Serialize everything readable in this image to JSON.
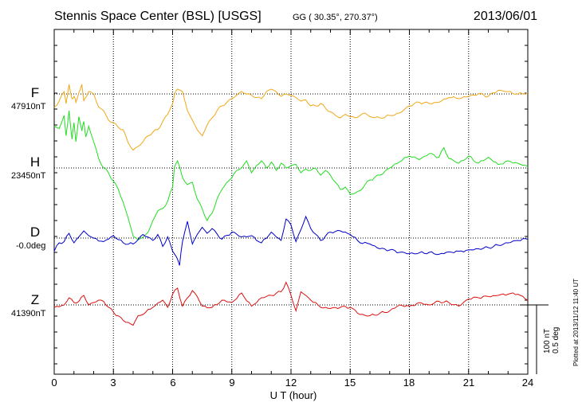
{
  "header": {
    "station": "Stennis Space Center (BSL)  [USGS]",
    "coords": "GG ( 30.35°, 270.37°)",
    "date": "2013/06/01"
  },
  "chart_data": {
    "type": "line",
    "title": "Stennis Space Center (BSL)  [USGS]",
    "xlabel": "U T (hour)",
    "ylabel": "",
    "xlim": [
      0,
      24
    ],
    "x_ticks": [
      "0",
      "3",
      "6",
      "9",
      "12",
      "15",
      "18",
      "21",
      "24"
    ],
    "grid": true,
    "scale_label": "100 nT",
    "scale_label_deg": "0.5 deg",
    "scale_bar_nT": 100,
    "series": [
      {
        "name": "F",
        "baseline_label": "47910nT",
        "color": "#f0a818",
        "x": [
          0,
          0.25,
          0.5,
          0.6,
          0.75,
          0.9,
          1.0,
          1.1,
          1.25,
          1.4,
          1.5,
          1.6,
          1.75,
          2.0,
          2.25,
          2.5,
          2.75,
          3.0,
          3.25,
          3.5,
          3.75,
          4.0,
          4.25,
          4.5,
          4.75,
          5.0,
          5.25,
          5.5,
          5.75,
          6.0,
          6.1,
          6.25,
          6.5,
          6.75,
          7.0,
          7.25,
          7.5,
          7.75,
          8.0,
          8.25,
          8.5,
          8.75,
          9.0,
          9.25,
          9.5,
          9.75,
          10.0,
          10.25,
          10.5,
          10.75,
          11.0,
          11.25,
          11.5,
          11.75,
          12.0,
          12.25,
          12.5,
          12.75,
          13.0,
          13.25,
          13.5,
          13.75,
          14.0,
          14.25,
          14.5,
          14.75,
          15.0,
          15.25,
          15.5,
          15.75,
          16.0,
          16.5,
          17.0,
          17.5,
          18.0,
          18.5,
          19.0,
          19.5,
          20.0,
          20.5,
          21.0,
          21.5,
          22.0,
          22.5,
          23.0,
          23.5,
          24.0
        ],
        "values": [
          -55,
          -30,
          10,
          -40,
          40,
          -20,
          -10,
          -35,
          5,
          40,
          -30,
          -15,
          10,
          0,
          -55,
          -70,
          -110,
          -120,
          -140,
          -150,
          -205,
          -235,
          -220,
          -200,
          -175,
          -160,
          -150,
          -115,
          -85,
          -40,
          0,
          20,
          10,
          -70,
          -110,
          -150,
          -175,
          -130,
          -100,
          -70,
          -50,
          -35,
          -20,
          -5,
          10,
          0,
          -5,
          -15,
          -20,
          10,
          20,
          10,
          -10,
          0,
          -5,
          -15,
          -30,
          -25,
          -50,
          -50,
          -40,
          -60,
          -75,
          -90,
          -100,
          -85,
          -95,
          -100,
          -90,
          -80,
          -95,
          -100,
          -90,
          -80,
          -50,
          -35,
          -40,
          -35,
          -15,
          -20,
          -10,
          0,
          -10,
          15,
          10,
          0,
          5
        ]
      },
      {
        "name": "H",
        "baseline_label": "23450nT",
        "color": "#22dd22",
        "x": [
          0,
          0.25,
          0.5,
          0.6,
          0.75,
          0.9,
          1.0,
          1.1,
          1.25,
          1.4,
          1.5,
          1.6,
          1.75,
          2.0,
          2.25,
          2.5,
          2.75,
          3.0,
          3.25,
          3.5,
          3.75,
          4.0,
          4.25,
          4.5,
          4.75,
          5.0,
          5.25,
          5.5,
          5.75,
          6.0,
          6.1,
          6.25,
          6.5,
          6.75,
          7.0,
          7.25,
          7.5,
          7.75,
          8.0,
          8.25,
          8.5,
          8.75,
          9.0,
          9.25,
          9.5,
          9.75,
          10.0,
          10.25,
          10.5,
          10.75,
          11.0,
          11.25,
          11.5,
          11.75,
          12.0,
          12.25,
          12.5,
          12.75,
          13.0,
          13.25,
          13.5,
          13.75,
          14.0,
          14.25,
          14.5,
          14.75,
          15.0,
          15.25,
          15.5,
          15.75,
          16.0,
          16.5,
          17.0,
          17.5,
          18.0,
          18.5,
          19.0,
          19.5,
          19.75,
          20.0,
          20.5,
          21.0,
          21.5,
          22.0,
          22.5,
          23.0,
          23.5,
          24.0
        ],
        "values": [
          175,
          165,
          220,
          135,
          240,
          120,
          190,
          110,
          215,
          155,
          195,
          130,
          175,
          110,
          40,
          0,
          -20,
          -55,
          -90,
          -145,
          -210,
          -285,
          -300,
          -290,
          -270,
          -220,
          -180,
          -170,
          -140,
          -80,
          5,
          30,
          -40,
          -70,
          -60,
          -130,
          -170,
          -220,
          -190,
          -130,
          -90,
          -60,
          -40,
          -10,
          0,
          30,
          -20,
          10,
          30,
          0,
          25,
          -10,
          20,
          0,
          10,
          15,
          -20,
          -5,
          -10,
          0,
          -30,
          -10,
          -30,
          -60,
          -90,
          -80,
          -110,
          -105,
          -95,
          -70,
          -50,
          -30,
          0,
          25,
          50,
          35,
          60,
          45,
          85,
          40,
          20,
          50,
          20,
          45,
          15,
          30,
          20,
          5
        ]
      },
      {
        "name": "D",
        "baseline_label": "-0.0deg",
        "color": "#0000cc",
        "x": [
          0,
          0.25,
          0.5,
          0.75,
          1.0,
          1.25,
          1.5,
          1.75,
          2.0,
          2.5,
          3.0,
          3.5,
          4.0,
          4.5,
          5.0,
          5.25,
          5.5,
          5.75,
          6.0,
          6.2,
          6.35,
          6.5,
          6.75,
          7.0,
          7.25,
          7.5,
          7.75,
          8.0,
          8.5,
          9.0,
          9.5,
          10.0,
          10.5,
          11.0,
          11.25,
          11.5,
          11.75,
          12.0,
          12.25,
          12.5,
          12.75,
          13.0,
          13.5,
          14.0,
          14.5,
          15.0,
          15.5,
          16.0,
          16.5,
          17.0,
          17.5,
          18.0,
          18.5,
          19.0,
          19.5,
          20.0,
          20.5,
          21.0,
          21.5,
          22.0,
          22.5,
          23.0,
          23.5,
          24.0
        ],
        "values": [
          -55,
          -20,
          -15,
          20,
          -20,
          5,
          30,
          10,
          0,
          -15,
          10,
          -20,
          -25,
          15,
          -10,
          15,
          -35,
          5,
          -55,
          -80,
          -115,
          -15,
          70,
          -25,
          15,
          45,
          20,
          40,
          -5,
          25,
          5,
          10,
          -20,
          25,
          5,
          -10,
          80,
          55,
          -15,
          35,
          90,
          40,
          -10,
          25,
          30,
          15,
          -20,
          -25,
          -45,
          -50,
          -60,
          -65,
          -62,
          -60,
          -68,
          -58,
          -55,
          -50,
          -45,
          -40,
          -30,
          -20,
          -10,
          -5
        ]
      },
      {
        "name": "Z",
        "baseline_label": "41390nT",
        "color": "#dd1111",
        "x": [
          0,
          0.5,
          0.75,
          1.0,
          1.25,
          1.5,
          1.75,
          2.0,
          2.25,
          2.5,
          2.75,
          3.0,
          3.5,
          4.0,
          4.25,
          4.5,
          5.0,
          5.5,
          5.75,
          6.0,
          6.25,
          6.5,
          7.0,
          7.25,
          7.5,
          8.0,
          8.5,
          9.0,
          9.5,
          10.0,
          10.5,
          11.0,
          11.5,
          11.75,
          12.0,
          12.25,
          12.5,
          12.75,
          13.0,
          13.5,
          14.0,
          14.5,
          15.0,
          15.5,
          16.0,
          16.5,
          17.0,
          17.5,
          18.0,
          18.5,
          19.0,
          19.5,
          20.0,
          20.5,
          21.0,
          21.5,
          22.0,
          22.5,
          23.0,
          23.5,
          24.0
        ],
        "values": [
          -10,
          0,
          30,
          10,
          15,
          40,
          0,
          10,
          20,
          15,
          -10,
          -30,
          -65,
          -85,
          -45,
          -40,
          -10,
          20,
          -10,
          45,
          70,
          -5,
          60,
          35,
          -5,
          -10,
          20,
          10,
          50,
          -5,
          30,
          40,
          55,
          95,
          40,
          -25,
          55,
          40,
          20,
          -10,
          -15,
          -10,
          -10,
          -40,
          -45,
          -35,
          -25,
          0,
          -5,
          10,
          0,
          15,
          10,
          -5,
          25,
          30,
          35,
          40,
          45,
          45,
          20
        ]
      }
    ]
  },
  "footer": {
    "plotted_note": "Plotted at 2013/11/12 11:40 UT"
  }
}
